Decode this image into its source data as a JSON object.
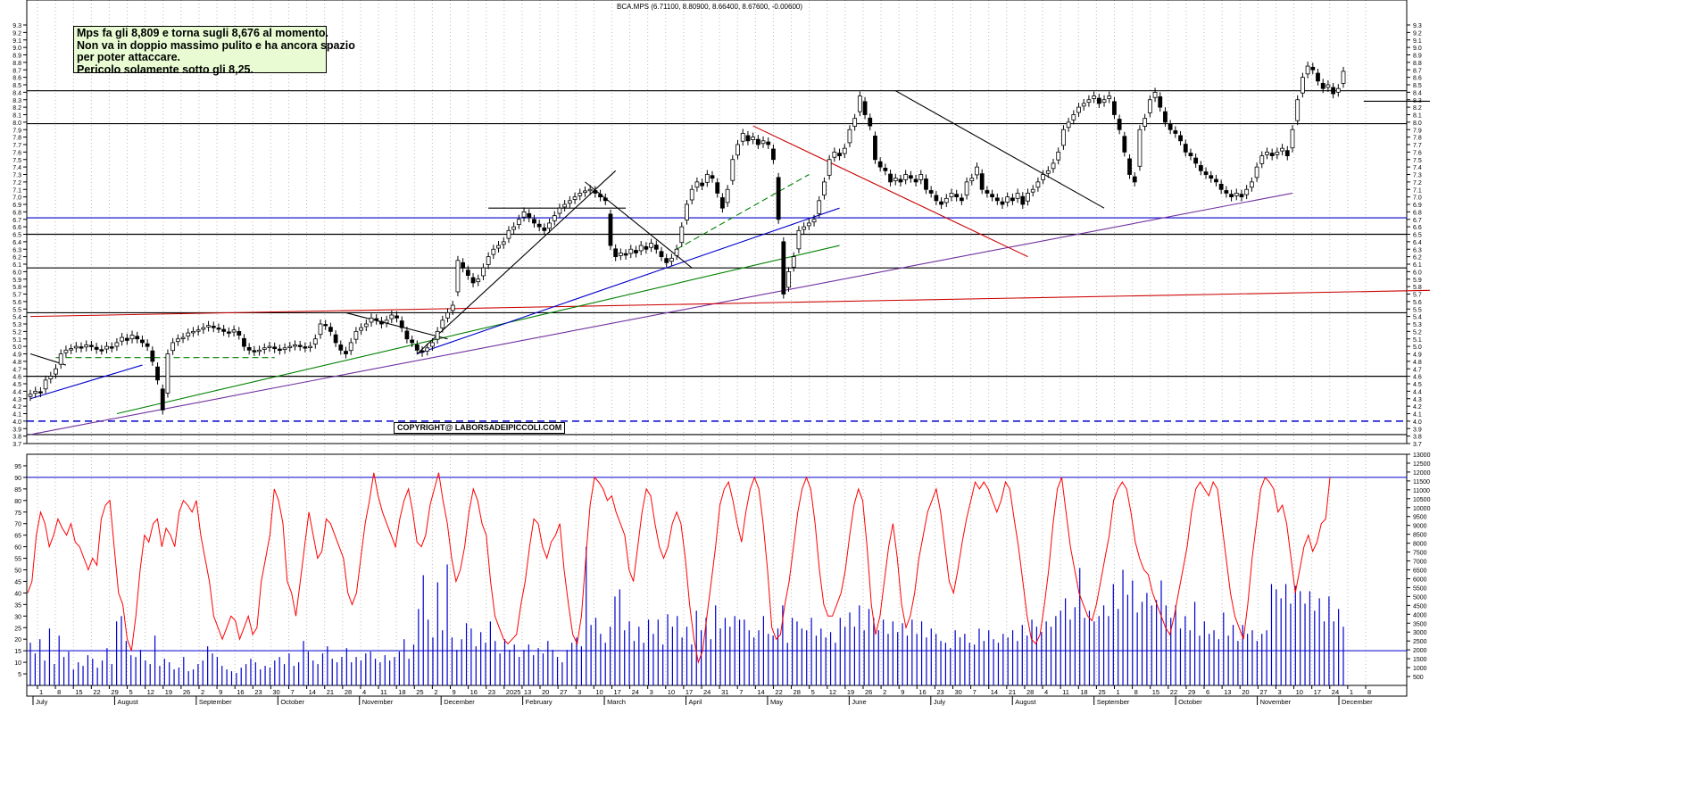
{
  "chart_data": [
    {
      "type": "candlestick",
      "title": "BCA.MPS (6.71100, 8.80900, 8.66400, 8.67600, -0.00600)",
      "ylim": [
        3.7,
        9.3
      ],
      "yticks": [
        "3.7",
        "3.8",
        "3.9",
        "4.0",
        "4.1",
        "4.2",
        "4.3",
        "4.4",
        "4.5",
        "4.6",
        "4.7",
        "4.8",
        "4.9",
        "5.0",
        "5.1",
        "5.2",
        "5.3",
        "5.4",
        "5.5",
        "5.6",
        "5.7",
        "5.8",
        "5.9",
        "6.0",
        "6.1",
        "6.2",
        "6.3",
        "6.4",
        "6.5",
        "6.6",
        "6.7",
        "6.8",
        "6.9",
        "7.0",
        "7.1",
        "7.2",
        "7.3",
        "7.4",
        "7.5",
        "7.6",
        "7.7",
        "7.8",
        "7.9",
        "8.0",
        "8.1",
        "8.2",
        "8.3",
        "8.4",
        "8.5",
        "8.6",
        "8.7",
        "8.8",
        "8.9",
        "9.0",
        "9.1",
        "9.2",
        "9.3"
      ],
      "grid": true,
      "closes": [
        4.36,
        4.4,
        4.38,
        4.55,
        4.6,
        4.7,
        4.9,
        4.95,
        4.97,
        5.0,
        4.98,
        5.02,
        5.0,
        4.96,
        4.95,
        5.0,
        4.98,
        5.05,
        5.12,
        5.08,
        5.15,
        5.1,
        5.05,
        5.0,
        4.8,
        4.55,
        4.15,
        4.9,
        5.05,
        5.1,
        5.12,
        5.18,
        5.2,
        5.22,
        5.25,
        5.28,
        5.25,
        5.24,
        5.2,
        5.18,
        5.22,
        5.15,
        5.0,
        4.95,
        4.93,
        4.95,
        4.98,
        5.0,
        4.97,
        4.95,
        4.98,
        5.0,
        5.02,
        5.0,
        4.98,
        5.0,
        5.1,
        5.3,
        5.28,
        5.2,
        5.05,
        4.95,
        4.9,
        5.05,
        5.2,
        5.25,
        5.3,
        5.38,
        5.35,
        5.3,
        5.35,
        5.42,
        5.38,
        5.25,
        5.1,
        5.05,
        4.95,
        4.92,
        4.98,
        5.05,
        5.2,
        5.35,
        5.45,
        5.55,
        6.15,
        6.05,
        5.95,
        5.85,
        5.9,
        6.05,
        6.2,
        6.3,
        6.35,
        6.4,
        6.55,
        6.6,
        6.7,
        6.8,
        6.72,
        6.65,
        6.6,
        6.55,
        6.65,
        6.75,
        6.85,
        6.9,
        6.95,
        7.0,
        7.05,
        7.08,
        7.1,
        7.05,
        7.0,
        6.95,
        6.35,
        6.2,
        6.25,
        6.22,
        6.3,
        6.25,
        6.35,
        6.3,
        6.38,
        6.3,
        6.2,
        6.12,
        6.18,
        6.3,
        6.6,
        6.9,
        7.1,
        7.2,
        7.15,
        7.3,
        7.25,
        7.05,
        6.85,
        7.1,
        7.5,
        7.7,
        7.85,
        7.75,
        7.8,
        7.7,
        7.75,
        7.7,
        7.5,
        6.7,
        5.7,
        6.0,
        6.2,
        6.55,
        6.6,
        6.65,
        6.7,
        6.95,
        7.2,
        7.5,
        7.6,
        7.55,
        7.65,
        7.9,
        8.05,
        8.35,
        8.1,
        7.95,
        7.5,
        7.4,
        7.35,
        7.2,
        7.25,
        7.2,
        7.3,
        7.25,
        7.2,
        7.3,
        7.1,
        7.05,
        6.95,
        6.9,
        6.98,
        7.05,
        7.0,
        6.95,
        7.2,
        7.25,
        7.4,
        7.1,
        7.05,
        7.0,
        6.95,
        6.9,
        7.0,
        6.95,
        7.05,
        6.9,
        7.05,
        7.1,
        7.2,
        7.3,
        7.35,
        7.45,
        7.6,
        7.9,
        8.0,
        8.1,
        8.2,
        8.25,
        8.3,
        8.35,
        8.25,
        8.3,
        8.35,
        8.1,
        7.9,
        7.6,
        7.3,
        7.2,
        7.9,
        8.05,
        8.3,
        8.4,
        8.2,
        8.0,
        7.9,
        7.85,
        7.75,
        7.6,
        7.55,
        7.45,
        7.35,
        7.3,
        7.25,
        7.2,
        7.1,
        7.05,
        7.0,
        7.05,
        7.0,
        7.1,
        7.2,
        7.4,
        7.55,
        7.6,
        7.55,
        7.6,
        7.65,
        7.55,
        7.9,
        8.3,
        8.6,
        8.75,
        8.7,
        8.55,
        8.45,
        8.5,
        8.38,
        8.45,
        8.68
      ],
      "horizontal_levels": [
        {
          "value": 8.42,
          "color": "#000000"
        },
        {
          "value": 7.98,
          "color": "#000000"
        },
        {
          "value": 6.72,
          "color": "#0000cc"
        },
        {
          "value": 6.5,
          "color": "#000000"
        },
        {
          "value": 6.05,
          "color": "#000000"
        },
        {
          "value": 5.45,
          "color": "#000000"
        },
        {
          "value": 4.6,
          "color": "#000000"
        },
        {
          "value": 4.0,
          "color": "#0000cc",
          "dashed": true
        },
        {
          "value": 3.82,
          "color": "#000000"
        }
      ],
      "trendlines": [
        {
          "color": "#7030a0",
          "from": {
            "bar": 0,
            "value": 3.82
          },
          "to": {
            "bar": 248,
            "value": 7.05
          }
        },
        {
          "color": "#cc0000",
          "from": {
            "bar": 0,
            "value": 5.4
          },
          "to": {
            "bar": 275,
            "value": 5.75
          }
        },
        {
          "color": "#008000",
          "from": {
            "bar": 17,
            "value": 4.1
          },
          "to": {
            "bar": 159,
            "value": 6.35
          }
        },
        {
          "color": "#0000cc",
          "from": {
            "bar": 0,
            "value": 4.3
          },
          "to": {
            "bar": 22,
            "value": 4.75
          }
        },
        {
          "color": "#0000cc",
          "from": {
            "bar": 76,
            "value": 4.9
          },
          "to": {
            "bar": 159,
            "value": 6.85
          }
        },
        {
          "color": "#000000",
          "from": {
            "bar": 76,
            "value": 4.9
          },
          "to": {
            "bar": 115,
            "value": 7.35
          }
        },
        {
          "color": "#000000",
          "from": {
            "bar": 62,
            "value": 5.45
          },
          "to": {
            "bar": 82,
            "value": 5.1
          }
        },
        {
          "color": "#000000",
          "from": {
            "bar": 0,
            "value": 4.9
          },
          "to": {
            "bar": 7,
            "value": 4.75
          }
        },
        {
          "color": "#000000",
          "from": {
            "bar": 109,
            "value": 7.2
          },
          "to": {
            "bar": 130,
            "value": 6.05
          }
        },
        {
          "color": "#000000",
          "from": {
            "bar": 90,
            "value": 6.85
          },
          "to": {
            "bar": 117,
            "value": 6.85
          }
        },
        {
          "color": "#000000",
          "from": {
            "bar": 170,
            "value": 8.42
          },
          "to": {
            "bar": 211,
            "value": 6.85
          }
        },
        {
          "color": "#cc0000",
          "from": {
            "bar": 142,
            "value": 7.95
          },
          "to": {
            "bar": 196,
            "value": 6.2
          }
        },
        {
          "color": "#008000",
          "dashed": true,
          "from": {
            "bar": 127,
            "value": 6.3
          },
          "to": {
            "bar": 153,
            "value": 7.3
          }
        },
        {
          "color": "#008000",
          "dashed": true,
          "from": {
            "bar": 5,
            "value": 4.85
          },
          "to": {
            "bar": 48,
            "value": 4.85
          }
        },
        {
          "color": "#000000",
          "from": {
            "bar": 262,
            "value": 8.28
          },
          "to": {
            "bar": 275,
            "value": 8.28
          }
        }
      ]
    },
    {
      "type": "line",
      "series_color": "#ff0000",
      "ylim": [
        0,
        100
      ],
      "yticks": [
        "5",
        "10",
        "15",
        "20",
        "25",
        "30",
        "35",
        "40",
        "45",
        "50",
        "55",
        "60",
        "65",
        "70",
        "75",
        "80",
        "85",
        "90",
        "95"
      ],
      "reference_lines": [
        {
          "value": 90,
          "color": "#0000cc"
        },
        {
          "value": 15,
          "color": "#0000cc"
        }
      ],
      "values": [
        40,
        45,
        65,
        75,
        70,
        60,
        65,
        72,
        68,
        65,
        70,
        62,
        60,
        55,
        50,
        55,
        52,
        72,
        78,
        80,
        60,
        40,
        35,
        20,
        15,
        30,
        50,
        65,
        62,
        70,
        72,
        60,
        68,
        65,
        60,
        75,
        80,
        78,
        75,
        80,
        65,
        55,
        45,
        30,
        25,
        20,
        25,
        30,
        28,
        20,
        25,
        30,
        22,
        25,
        45,
        55,
        65,
        85,
        80,
        70,
        45,
        40,
        30,
        45,
        60,
        75,
        65,
        55,
        58,
        72,
        70,
        65,
        60,
        55,
        40,
        35,
        40,
        55,
        70,
        80,
        92,
        82,
        75,
        70,
        65,
        60,
        72,
        80,
        85,
        75,
        62,
        60,
        65,
        78,
        85,
        92,
        80,
        70,
        55,
        45,
        50,
        60,
        75,
        85,
        80,
        70,
        65,
        45,
        30,
        25,
        20,
        18,
        20,
        22,
        35,
        45,
        60,
        72,
        70,
        60,
        55,
        62,
        65,
        70,
        50,
        35,
        22,
        18,
        30,
        55,
        78,
        90,
        88,
        85,
        80,
        82,
        75,
        70,
        65,
        50,
        45,
        60,
        75,
        85,
        82,
        70,
        60,
        55,
        60,
        70,
        75,
        70,
        55,
        35,
        20,
        10,
        15,
        30,
        45,
        60,
        78,
        85,
        88,
        80,
        70,
        62,
        75,
        85,
        90,
        85,
        70,
        50,
        25,
        20,
        22,
        35,
        45,
        60,
        75,
        85,
        90,
        85,
        70,
        50,
        35,
        30,
        30,
        35,
        40,
        50,
        65,
        78,
        85,
        80,
        60,
        35,
        22,
        30,
        45,
        60,
        70,
        55,
        35,
        25,
        30,
        40,
        55,
        65,
        75,
        80,
        85,
        75,
        60,
        45,
        40,
        50,
        62,
        72,
        80,
        88,
        85,
        88,
        85,
        80,
        75,
        80,
        88,
        85,
        72,
        60,
        45,
        30,
        20,
        18,
        22,
        35,
        50,
        70,
        85,
        90,
        75,
        60,
        50,
        40,
        35,
        30,
        28,
        35,
        45,
        55,
        65,
        80,
        85,
        88,
        85,
        75,
        62,
        55,
        50,
        48,
        40,
        35,
        30,
        25,
        22,
        30,
        40,
        50,
        60,
        75,
        85,
        88,
        85,
        82,
        88,
        85,
        70,
        55,
        40,
        30,
        25,
        20,
        35,
        55,
        70,
        85,
        90,
        88,
        85,
        75,
        78,
        70,
        55,
        40,
        50,
        60,
        65,
        58,
        62,
        70,
        72,
        90
      ]
    },
    {
      "type": "bar",
      "series_color": "#0000cc",
      "ylim": [
        0,
        13000
      ],
      "yticks": [
        "500",
        "1000",
        "1500",
        "2000",
        "2500",
        "3000",
        "3500",
        "4000",
        "4500",
        "5000",
        "5500",
        "6000",
        "6500",
        "7000",
        "7500",
        "8000",
        "8500",
        "9000",
        "9500",
        "10000",
        "10500",
        "11000",
        "11500",
        "12000",
        "12500",
        "13000"
      ],
      "values": [
        2400,
        1800,
        2600,
        1400,
        3200,
        1200,
        2800,
        1600,
        1900,
        900,
        1300,
        1100,
        1700,
        1500,
        1000,
        1400,
        2100,
        1200,
        3600,
        3900,
        2500,
        1700,
        1600,
        2000,
        1400,
        1200,
        2800,
        1100,
        1500,
        1300,
        900,
        1000,
        1600,
        800,
        900,
        1200,
        1400,
        2200,
        1800,
        1600,
        1100,
        900,
        800,
        700,
        1000,
        1200,
        1500,
        1300,
        900,
        1100,
        1000,
        1400,
        1600,
        1200,
        1800,
        1100,
        1300,
        2500,
        1900,
        1400,
        1200,
        1800,
        2200,
        1500,
        1300,
        1600,
        2100,
        1300,
        1600,
        1400,
        1800,
        1900,
        1500,
        1300,
        1700,
        1400,
        1600,
        1900,
        2600,
        1500,
        2300,
        4300,
        6200,
        3700,
        2700,
        5800,
        3100,
        6800,
        2700,
        2000,
        2600,
        3500,
        3200,
        2200,
        3000,
        2400,
        3600,
        2500,
        1800,
        2600,
        2000,
        2300,
        1600,
        2000,
        2300,
        1700,
        2100,
        1800,
        2500,
        2000,
        1600,
        1300,
        2000,
        2400,
        2700,
        2200,
        7800,
        3400,
        3800,
        2900,
        2400,
        3300,
        5000,
        5400,
        3100,
        3600,
        2500,
        3300,
        2400,
        3700,
        2900,
        3700,
        2300,
        4000,
        3300,
        3900,
        2700,
        3300,
        2300,
        4200,
        3100,
        3800,
        2600,
        4500,
        3200,
        3800,
        3300,
        3900,
        3700,
        3700,
        3100,
        2700,
        3100,
        3900,
        2900,
        2800,
        3200,
        4500,
        2400,
        3800,
        3600,
        3200,
        3100,
        3800,
        2800,
        3200,
        2700,
        3000,
        2400,
        3800,
        3300,
        4100,
        3300,
        4500,
        3100,
        4300,
        3800,
        3100,
        3700,
        2900,
        3600,
        3000,
        3500,
        2800,
        3700,
        2900,
        3600,
        2700,
        3200,
        2900,
        2500,
        2400,
        2100,
        3100,
        2700,
        2900,
        2400,
        2300,
        3200,
        2500,
        3100,
        2600,
        2400,
        2900,
        2700,
        3100,
        2500,
        3400,
        2800,
        3700,
        3300,
        3000,
        3600,
        3300,
        3900,
        4200,
        4900,
        3700,
        4400,
        6600,
        3800,
        4200,
        3600,
        3900,
        4500,
        3900,
        5700,
        4300,
        6500,
        5100,
        5900,
        4100,
        4700,
        5200,
        4500,
        4800,
        5900,
        4500,
        3800,
        4500,
        3200,
        3900,
        3100,
        4700,
        2800,
        3600,
        2900,
        3100,
        2600,
        4100,
        2800,
        3400,
        2500,
        3400,
        2900,
        3100,
        2500,
        2900,
        3100,
        5700,
        5400,
        4900,
        5700,
        4600,
        5600,
        5300,
        4600,
        5300,
        4200,
        4900,
        3600,
        5000,
        3600,
        4300,
        3300
      ]
    }
  ],
  "annotation": {
    "lines": [
      "Mps fa gli 8,809 e torna sugli 8,676 al momento.",
      "Non va in doppio massimo pulito e ha ancora spazio",
      "per poter attaccare.",
      "Pericolo solamente sotto gli 8,25."
    ]
  },
  "copyright": "COPYRIGHT@ LABORSADEIPICCOLI.COM",
  "x_axis": {
    "days": [
      "1",
      "8",
      "15",
      "22",
      "29",
      "5",
      "12",
      "19",
      "26",
      "2",
      "9",
      "16",
      "23",
      "30",
      "7",
      "14",
      "21",
      "28",
      "4",
      "11",
      "18",
      "25",
      "2",
      "9",
      "16",
      "23",
      "2025",
      "13",
      "20",
      "27",
      "3",
      "10",
      "17",
      "24",
      "3",
      "10",
      "17",
      "24",
      "31",
      "7",
      "14",
      "22",
      "28",
      "5",
      "12",
      "19",
      "26",
      "2",
      "9",
      "16",
      "23",
      "30",
      "7",
      "14",
      "21",
      "28",
      "4",
      "11",
      "18",
      "25",
      "1",
      "8",
      "15",
      "22",
      "29",
      "6",
      "13",
      "20",
      "27",
      "3",
      "10",
      "17",
      "24",
      "1",
      "8"
    ],
    "months": [
      "July",
      "August",
      "September",
      "October",
      "November",
      "December",
      "February",
      "March",
      "April",
      "May",
      "June",
      "July",
      "August",
      "September",
      "October",
      "November",
      "December"
    ]
  }
}
